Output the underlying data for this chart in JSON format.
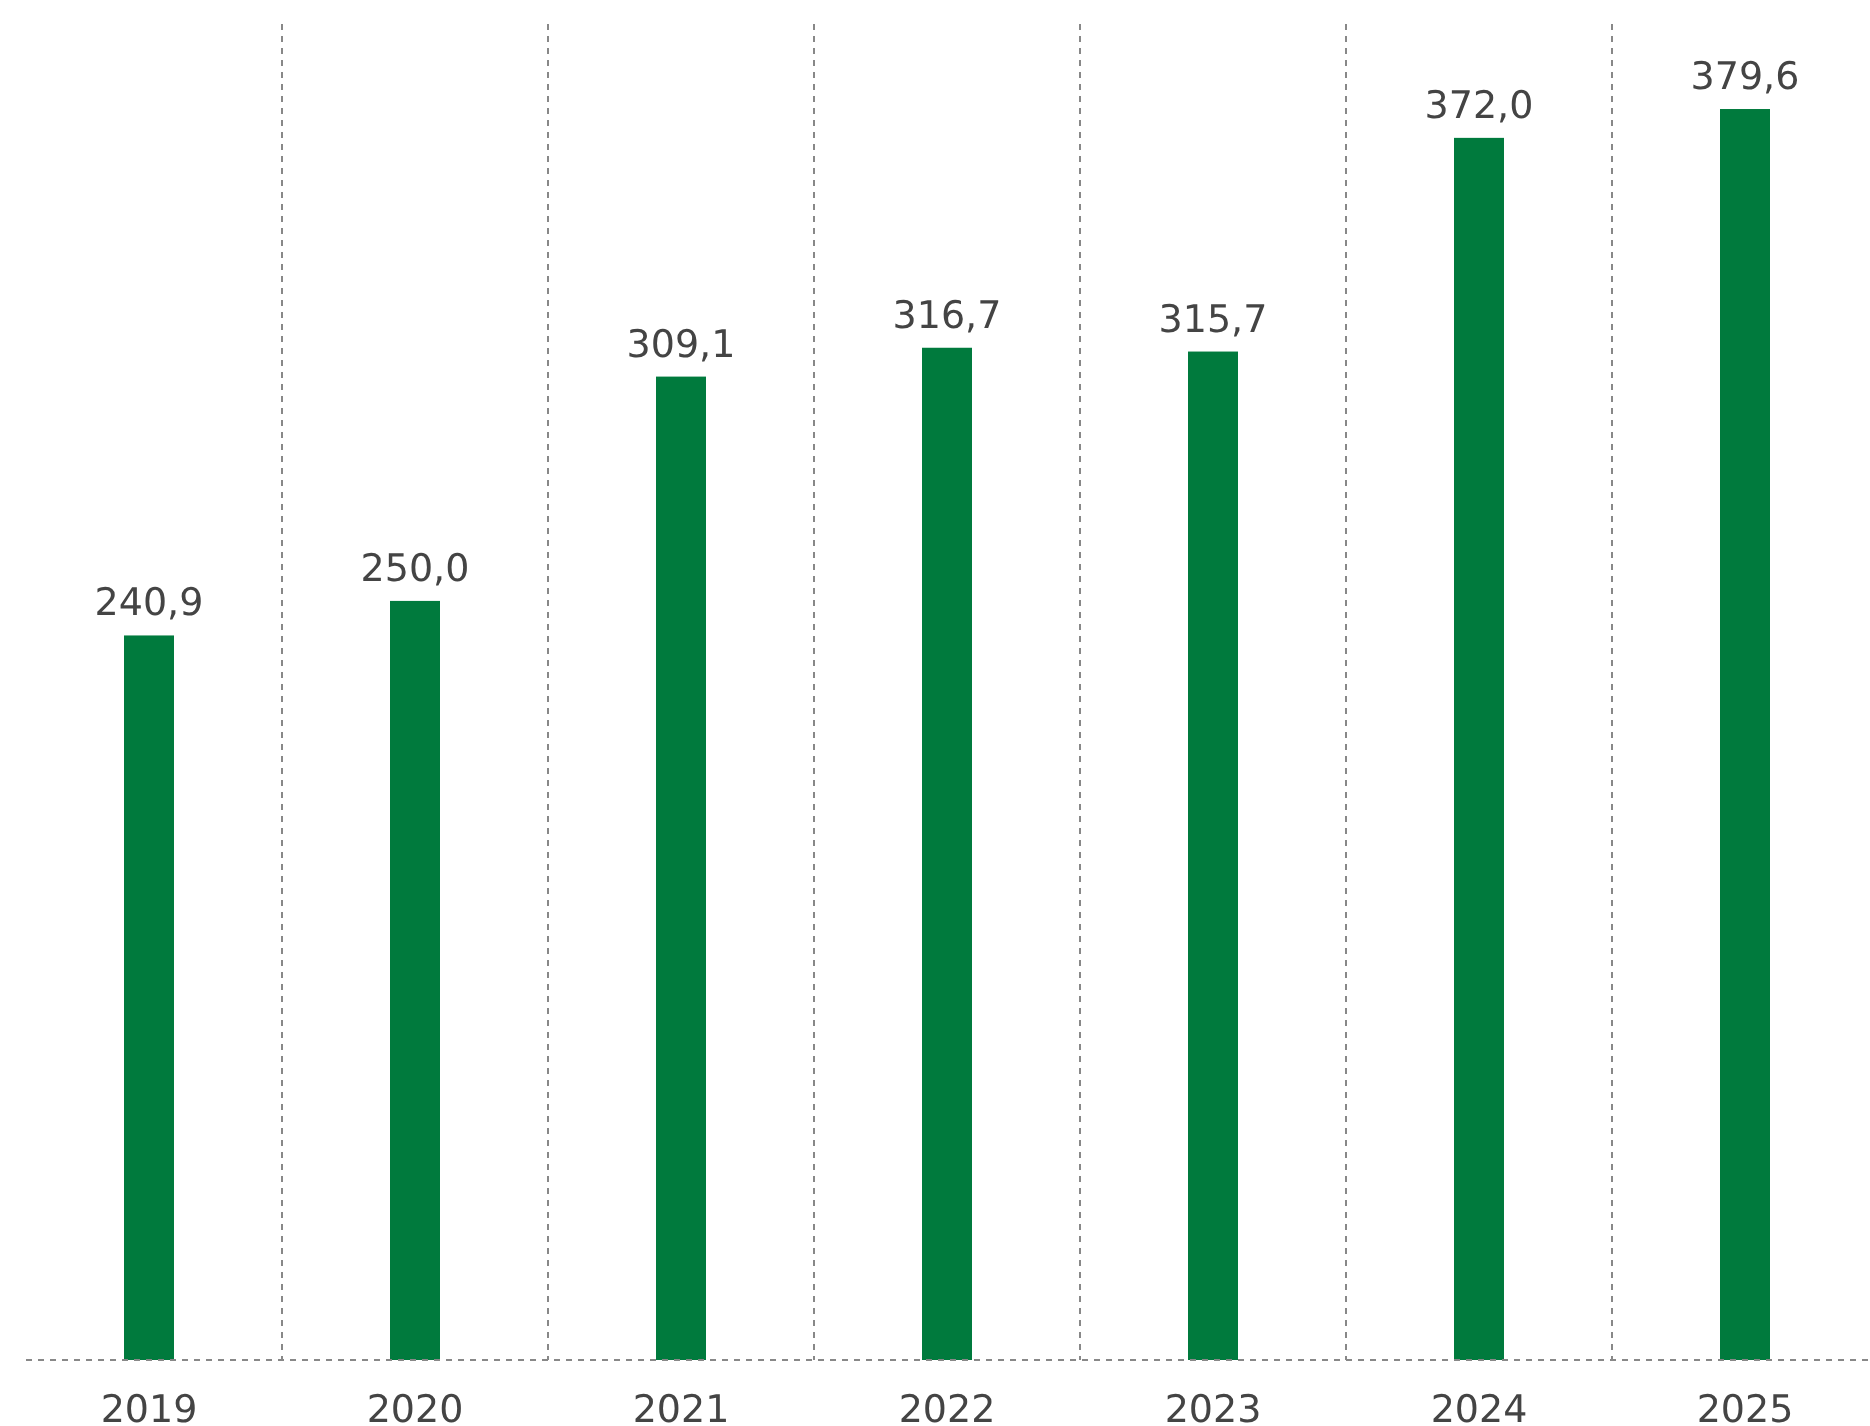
{
  "chart_data": {
    "type": "bar",
    "categories": [
      "2019",
      "2020",
      "2021",
      "2022",
      "2023",
      "2024",
      "2025"
    ],
    "values": [
      240.9,
      250.0,
      309.1,
      316.7,
      315.7,
      372.0,
      379.6
    ],
    "value_labels": [
      "240,9",
      "250,0",
      "309,1",
      "316,7",
      "315,7",
      "372,0",
      "379,6"
    ],
    "color": "#007a3d",
    "ylim": [
      50,
      402
    ],
    "grid": "x"
  }
}
